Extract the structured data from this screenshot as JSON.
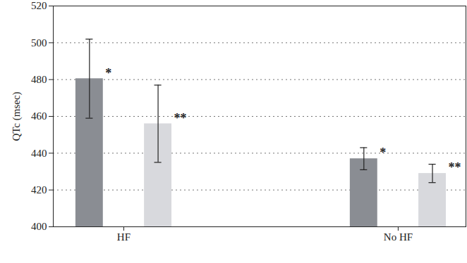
{
  "chart_data": {
    "type": "bar",
    "ylabel": "QTc (msec)",
    "categories": [
      "HF",
      "No HF"
    ],
    "series": [
      {
        "color": "#8a8d93",
        "values": [
          480.5,
          437
        ],
        "error_low": [
          459,
          431
        ],
        "error_high": [
          502,
          443
        ],
        "annotations": [
          "*",
          "*"
        ]
      },
      {
        "color": "#d8d9dd",
        "values": [
          456,
          429
        ],
        "error_low": [
          435,
          424
        ],
        "error_high": [
          477,
          434
        ],
        "annotations": [
          "**",
          "**"
        ]
      }
    ],
    "ylim": [
      400,
      520
    ],
    "yticks": [
      400,
      420,
      440,
      460,
      480,
      500,
      520
    ],
    "grid": true
  }
}
